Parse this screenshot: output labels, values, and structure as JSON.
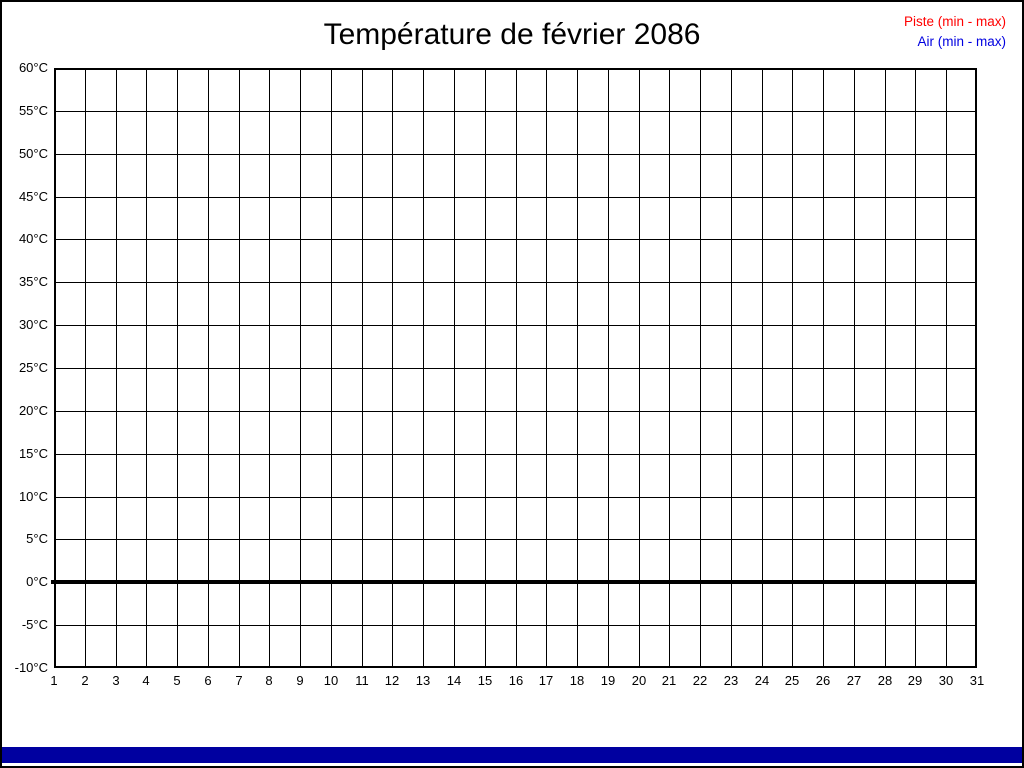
{
  "title": "Température de février 2086",
  "legend": [
    {
      "label": "Piste (min - max)",
      "color": "#ff0000"
    },
    {
      "label": "Air (min - max)",
      "color": "#0000e0"
    }
  ],
  "y_ticks": [
    "60°C",
    "55°C",
    "50°C",
    "45°C",
    "40°C",
    "35°C",
    "30°C",
    "25°C",
    "20°C",
    "15°C",
    "10°C",
    "5°C",
    "0°C",
    "-5°C",
    "-10°C"
  ],
  "x_ticks": [
    "1",
    "2",
    "3",
    "4",
    "5",
    "6",
    "7",
    "8",
    "9",
    "10",
    "11",
    "12",
    "13",
    "14",
    "15",
    "16",
    "17",
    "18",
    "19",
    "20",
    "21",
    "22",
    "23",
    "24",
    "25",
    "26",
    "27",
    "28",
    "29",
    "30",
    "31"
  ],
  "ui": {
    "grid_color": "#000000",
    "background_color": "#ffffff",
    "bottom_bar_color": "#0000a0"
  },
  "chart_data": {
    "type": "line",
    "title": "Température de février 2086",
    "x": [
      1,
      2,
      3,
      4,
      5,
      6,
      7,
      8,
      9,
      10,
      11,
      12,
      13,
      14,
      15,
      16,
      17,
      18,
      19,
      20,
      21,
      22,
      23,
      24,
      25,
      26,
      27,
      28,
      29,
      30,
      31
    ],
    "xlim": [
      1,
      31
    ],
    "ylim": [
      -10,
      60
    ],
    "ytick_step": 5,
    "grid": true,
    "legend_position": "top-right",
    "series": [
      {
        "name": "Piste (min - max)",
        "color": "#ff0000",
        "values": []
      },
      {
        "name": "Air (min - max)",
        "color": "#0000e0",
        "values": []
      }
    ],
    "annotations": [
      {
        "type": "hline",
        "y": 0,
        "style": "thick-black"
      }
    ],
    "note": "empty grid – no data points plotted for this month"
  }
}
